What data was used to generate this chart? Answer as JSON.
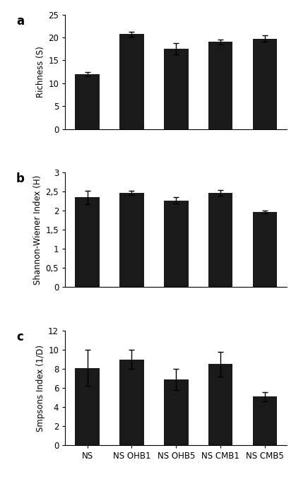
{
  "categories": [
    "NS",
    "NS OHB1",
    "NS OHB5",
    "NS CMB1",
    "NS CMB5"
  ],
  "panel_a": {
    "label": "Richness (S)",
    "values": [
      12.0,
      20.7,
      17.5,
      19.0,
      19.7
    ],
    "errors": [
      0.5,
      0.5,
      1.2,
      0.5,
      0.7
    ],
    "ylim": [
      0,
      25
    ],
    "yticks": [
      0,
      5,
      10,
      15,
      20,
      25
    ],
    "yticklabels": [
      "0",
      "5",
      "10",
      "15",
      "20",
      "25"
    ]
  },
  "panel_b": {
    "label": "Shannon-Wiener Index (H)",
    "values": [
      2.35,
      2.47,
      2.27,
      2.47,
      1.97
    ],
    "errors": [
      0.17,
      0.05,
      0.08,
      0.07,
      0.04
    ],
    "ylim": [
      0,
      3
    ],
    "yticks": [
      0,
      0.5,
      1.0,
      1.5,
      2.0,
      2.5,
      3.0
    ],
    "yticklabels": [
      "0",
      "0,5",
      "1",
      "1,5",
      "2",
      "2,5",
      "3"
    ]
  },
  "panel_c": {
    "label": "Smpsons Index (1/D)",
    "values": [
      8.1,
      9.0,
      6.9,
      8.5,
      5.1
    ],
    "errors": [
      1.9,
      1.0,
      1.1,
      1.3,
      0.5
    ],
    "ylim": [
      0,
      12
    ],
    "yticks": [
      0,
      2,
      4,
      6,
      8,
      10,
      12
    ],
    "yticklabels": [
      "0",
      "2",
      "4",
      "6",
      "8",
      "10",
      "12"
    ]
  },
  "bar_color": "#1a1a1a",
  "bar_width": 0.55,
  "panel_labels": [
    "a",
    "b",
    "c"
  ],
  "figsize": [
    4.19,
    6.85
  ],
  "dpi": 100
}
